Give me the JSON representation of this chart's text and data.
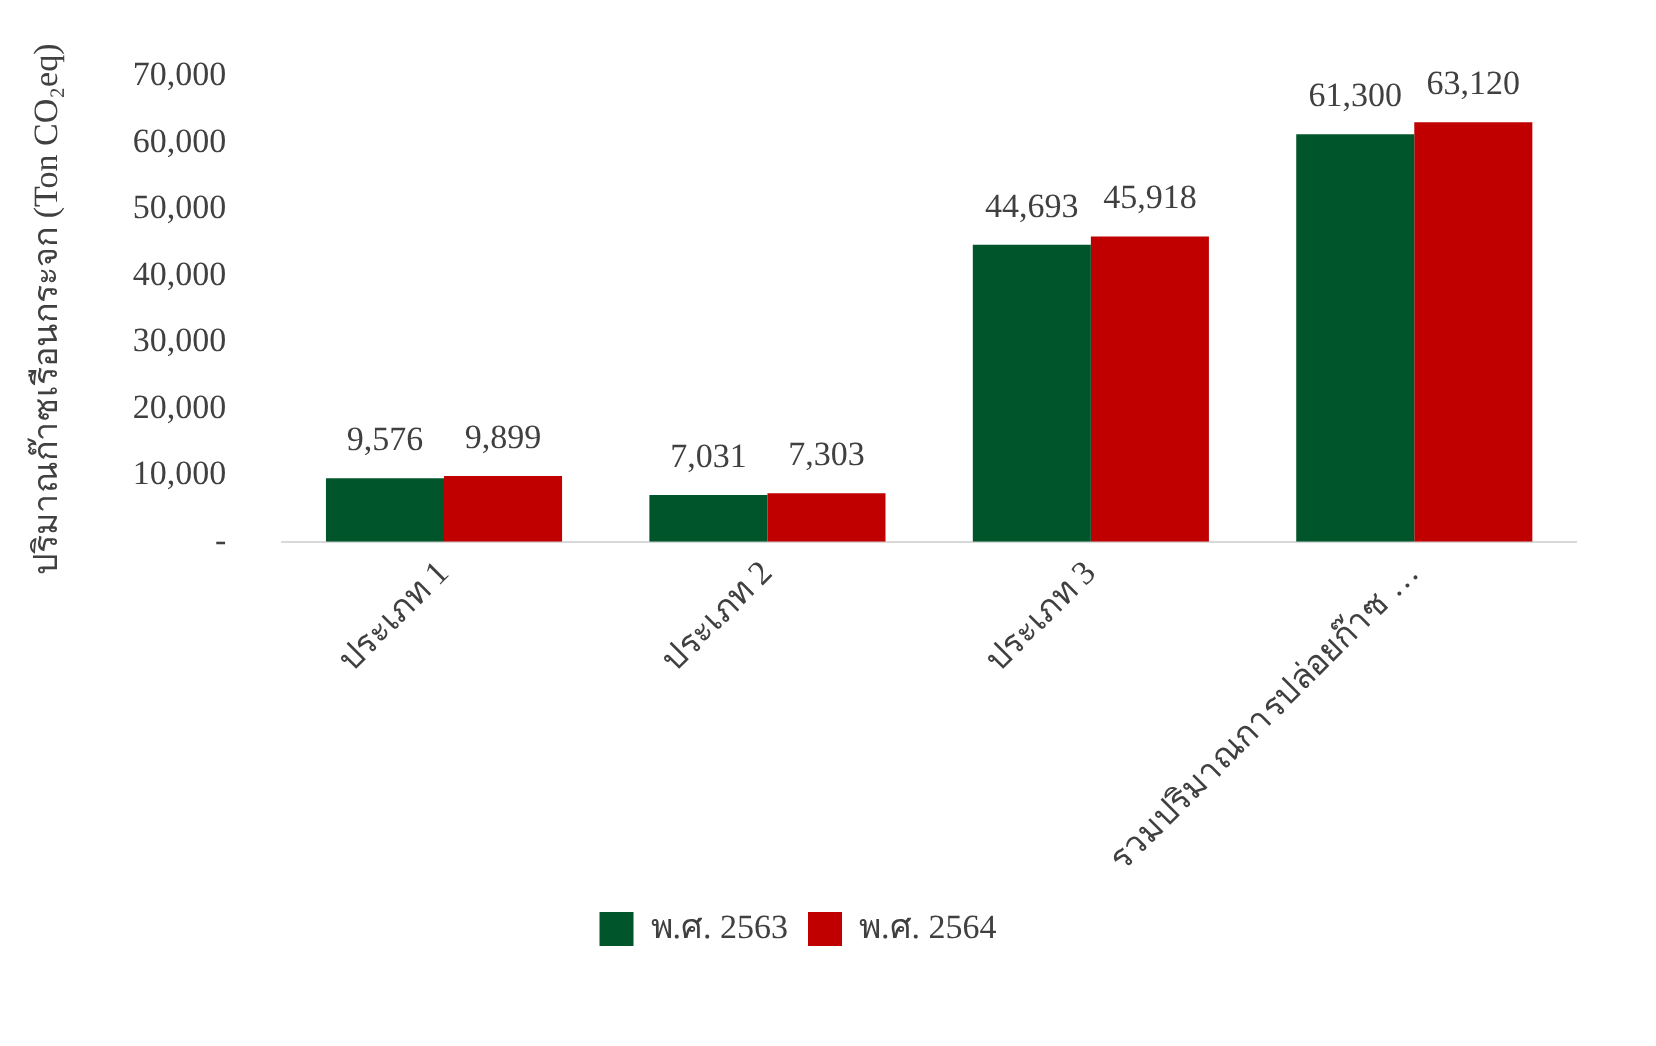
{
  "chart_data": {
    "type": "bar",
    "ylabel": "ปริมาณก๊าซเรือนกระจก (Ton CO₂eq)",
    "categories": [
      "ประเภท 1",
      "ประเภท 2",
      "ประเภท 3",
      "รวมปริมาณการปล่อยก๊าซ …"
    ],
    "series": [
      {
        "name": "พ.ศ. 2563",
        "color": "#00552a",
        "values": [
          9576,
          7031,
          44693,
          61300
        ],
        "value_labels": [
          "9,576",
          "7,031",
          "44,693",
          "61,300"
        ]
      },
      {
        "name": "พ.ศ. 2564",
        "color": "#c00000",
        "values": [
          9899,
          7303,
          45918,
          63120
        ],
        "value_labels": [
          "9,899",
          "7,303",
          "45,918",
          "63,120"
        ]
      }
    ],
    "ylim": [
      0,
      70000
    ],
    "yticks": [
      {
        "value": 0,
        "label": "-"
      },
      {
        "value": 10000,
        "label": "10,000"
      },
      {
        "value": 20000,
        "label": "20,000"
      },
      {
        "value": 30000,
        "label": "30,000"
      },
      {
        "value": 40000,
        "label": "40,000"
      },
      {
        "value": 50000,
        "label": "50,000"
      },
      {
        "value": 60000,
        "label": "60,000"
      },
      {
        "value": 70000,
        "label": "70,000"
      }
    ],
    "grid": false,
    "legend": "bottom"
  }
}
